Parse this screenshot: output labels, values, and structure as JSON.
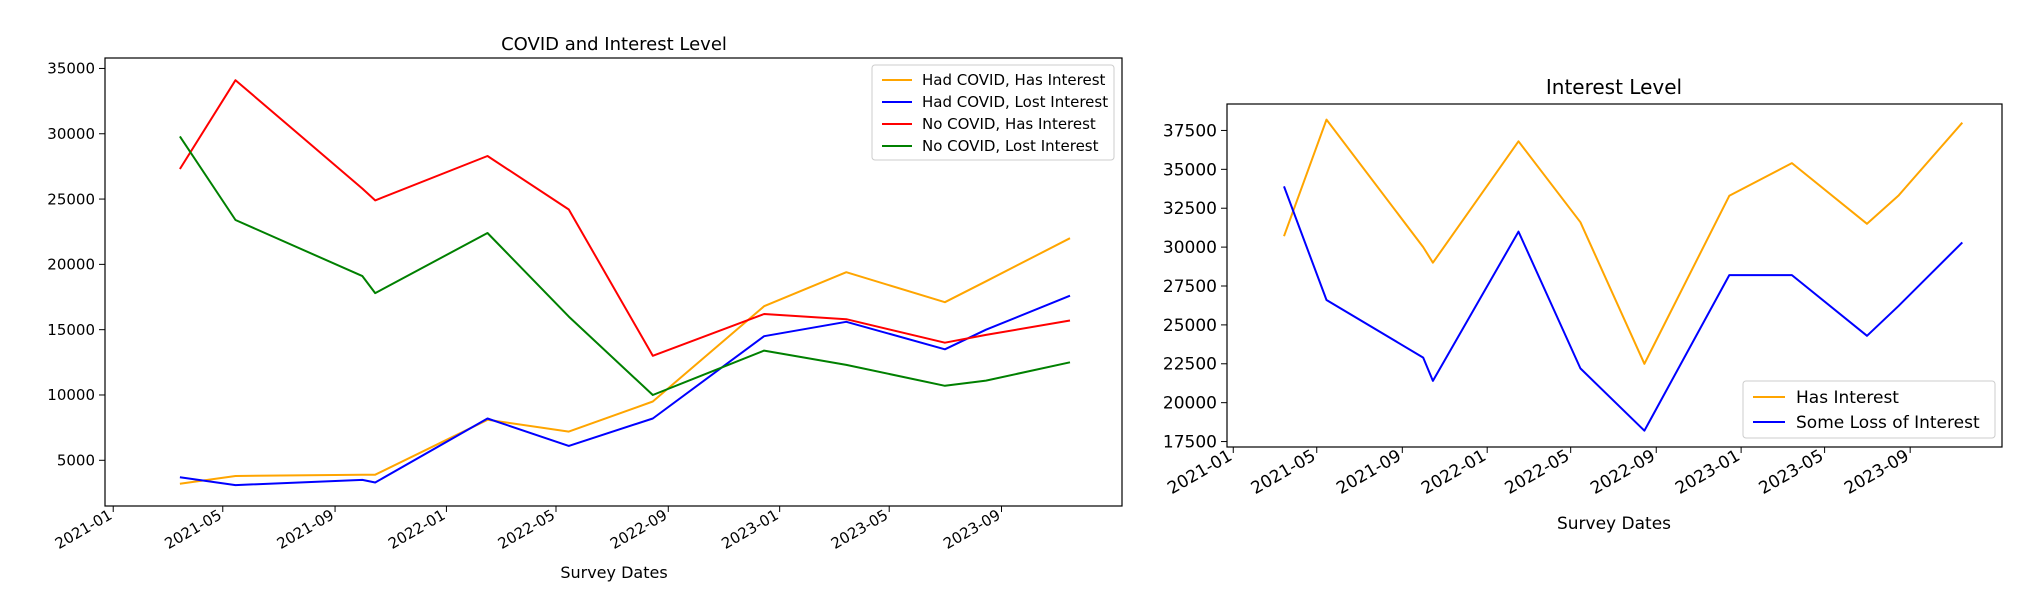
{
  "chart_data": [
    {
      "type": "line",
      "title": "COVID and Interest Level",
      "xlabel": "Survey Dates",
      "ylabel": "",
      "ylim": [
        1500,
        35800
      ],
      "xlim": [
        "2020-12-23",
        "2024-01-11"
      ],
      "yticks": [
        5000,
        10000,
        15000,
        20000,
        25000,
        30000,
        35000
      ],
      "xticks": [
        "2021-01",
        "2021-05",
        "2021-09",
        "2022-01",
        "2022-05",
        "2022-09",
        "2023-01",
        "2023-05",
        "2023-09"
      ],
      "x": [
        "2021-03-15",
        "2021-05-15",
        "2021-10-01",
        "2021-10-15",
        "2022-02-15",
        "2022-05-15",
        "2022-08-15",
        "2022-12-15",
        "2023-03-15",
        "2023-07-01",
        "2023-08-15",
        "2023-11-15"
      ],
      "legend": "top-right",
      "grid": false,
      "series": [
        {
          "name": "Had COVID, Has Interest",
          "color": "#FFA500",
          "values": [
            3200,
            3800,
            3900,
            3900,
            8100,
            7200,
            9500,
            16800,
            19400,
            17100,
            18700,
            22000
          ]
        },
        {
          "name": "Had COVID, Lost Interest",
          "color": "#0000FF",
          "values": [
            3700,
            3100,
            3500,
            3300,
            8200,
            6100,
            8200,
            14500,
            15600,
            13500,
            15000,
            17600
          ]
        },
        {
          "name": "No COVID, Has Interest",
          "color": "#FF0000",
          "values": [
            27300,
            34100,
            25800,
            24900,
            28300,
            24200,
            13000,
            16200,
            15800,
            14000,
            14600,
            15700
          ]
        },
        {
          "name": "No COVID, Lost Interest",
          "color": "#008000",
          "values": [
            29800,
            23400,
            19100,
            17800,
            22400,
            16000,
            10000,
            13400,
            12300,
            10700,
            11100,
            12500
          ]
        }
      ]
    },
    {
      "type": "line",
      "title": "Interest Level",
      "xlabel": "Survey Dates",
      "ylabel": "",
      "ylim": [
        17150,
        39200
      ],
      "xlim": [
        "2020-12-23",
        "2024-01-11"
      ],
      "yticks": [
        17500,
        20000,
        22500,
        25000,
        27500,
        30000,
        32500,
        35000,
        37500
      ],
      "xticks": [
        "2021-01",
        "2021-05",
        "2021-09",
        "2022-01",
        "2022-05",
        "2022-09",
        "2023-01",
        "2023-05",
        "2023-09"
      ],
      "x": [
        "2021-03-15",
        "2021-05-15",
        "2021-10-01",
        "2021-10-15",
        "2022-02-15",
        "2022-05-15",
        "2022-08-15",
        "2022-12-15",
        "2023-03-15",
        "2023-07-01",
        "2023-08-15",
        "2023-11-15"
      ],
      "legend": "bottom-right",
      "grid": false,
      "series": [
        {
          "name": "Has Interest",
          "color": "#FFA500",
          "values": [
            30700,
            38200,
            30000,
            29000,
            36800,
            31600,
            22500,
            33300,
            35400,
            31500,
            33300,
            38000
          ]
        },
        {
          "name": "Some Loss of Interest",
          "color": "#0000FF",
          "values": [
            33900,
            26600,
            22900,
            21400,
            31000,
            22200,
            18200,
            28200,
            28200,
            24300,
            26200,
            30300
          ]
        }
      ]
    }
  ]
}
